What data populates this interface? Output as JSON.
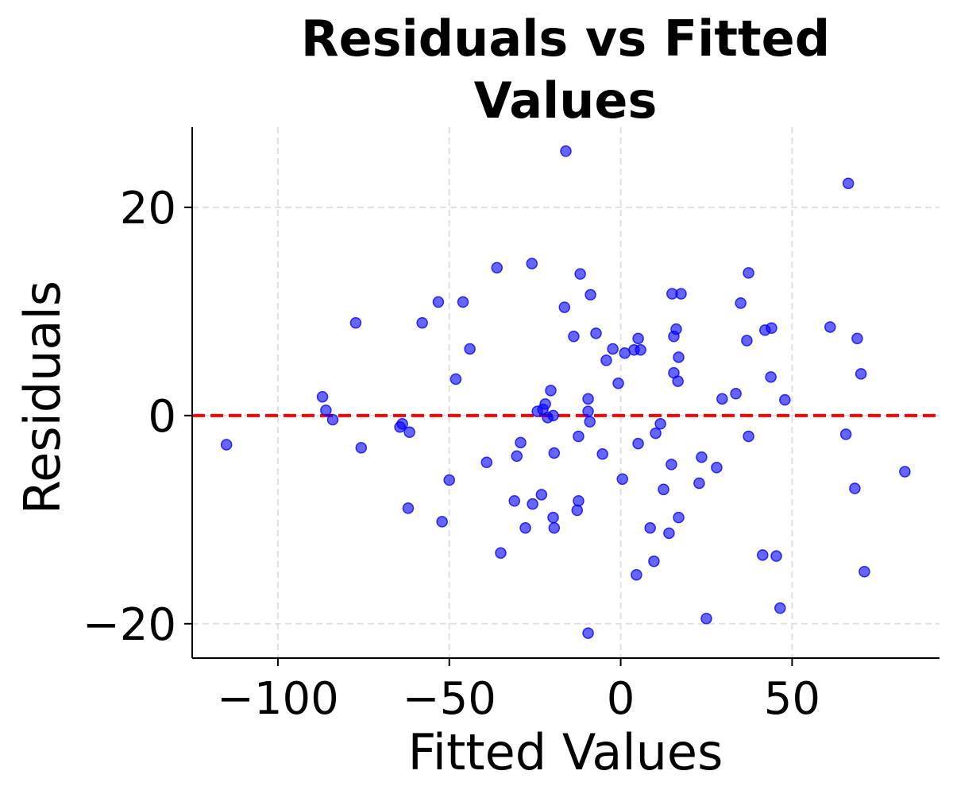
{
  "chart_data": {
    "type": "scatter",
    "title": [
      "Residuals vs Fitted",
      "Values"
    ],
    "xlabel": "Fitted Values",
    "ylabel": "Residuals",
    "xlim": [
      -125,
      93
    ],
    "ylim": [
      -23.3,
      27.7
    ],
    "xticks": [
      -100,
      -50,
      0,
      50
    ],
    "xtick_labels": [
      "−100",
      "−50",
      "0",
      "50"
    ],
    "yticks": [
      -20,
      0,
      20
    ],
    "ytick_labels": [
      "−20",
      "0",
      "20"
    ],
    "grid": true,
    "point_color": "#0000ff",
    "point_alpha": 0.6,
    "reference_line": {
      "y": 0,
      "color": "#ff0000",
      "style": "dashed"
    },
    "points": [
      [
        -115,
        -2.8
      ],
      [
        -87,
        1.8
      ],
      [
        -86,
        0.5
      ],
      [
        -84,
        -0.4
      ],
      [
        -77.3,
        8.9
      ],
      [
        -75.7,
        -3.1
      ],
      [
        -64.4,
        -1.1
      ],
      [
        -63.7,
        -0.8
      ],
      [
        -61.6,
        -1.6
      ],
      [
        -62,
        -8.9
      ],
      [
        -57.9,
        8.9
      ],
      [
        -53.2,
        10.9
      ],
      [
        -52.1,
        -10.2
      ],
      [
        -50,
        -6.2
      ],
      [
        -48.1,
        3.5
      ],
      [
        -46,
        10.9
      ],
      [
        -44,
        6.4
      ],
      [
        -39.1,
        -4.5
      ],
      [
        -36.1,
        14.2
      ],
      [
        -35,
        -13.2
      ],
      [
        -31,
        -8.2
      ],
      [
        -30.3,
        -3.9
      ],
      [
        -29.2,
        -2.6
      ],
      [
        -27.8,
        -10.8
      ],
      [
        -25.9,
        14.6
      ],
      [
        -25.7,
        -8.5
      ],
      [
        -24.3,
        0.4
      ],
      [
        -23.1,
        -7.6
      ],
      [
        -22.7,
        0.6
      ],
      [
        -22,
        1.1
      ],
      [
        -21.3,
        -0.2
      ],
      [
        -20.4,
        2.4
      ],
      [
        -19.7,
        0
      ],
      [
        -19.7,
        -9.8
      ],
      [
        -19.4,
        -10.8
      ],
      [
        -19.4,
        -3.6
      ],
      [
        -16,
        25.4
      ],
      [
        -16.4,
        10.4
      ],
      [
        -13.7,
        7.6
      ],
      [
        -12.3,
        -2
      ],
      [
        -12.3,
        -8.2
      ],
      [
        -12.7,
        -9.1
      ],
      [
        -11.8,
        13.6
      ],
      [
        -9.5,
        1.6
      ],
      [
        -9.5,
        0.4
      ],
      [
        -9,
        -0.6
      ],
      [
        -8.8,
        11.6
      ],
      [
        -9.5,
        -20.9
      ],
      [
        -7.2,
        7.9
      ],
      [
        -5.3,
        -3.7
      ],
      [
        -4.2,
        5.3
      ],
      [
        -2.3,
        6.4
      ],
      [
        -0.7,
        3.1
      ],
      [
        0.5,
        -6.1
      ],
      [
        1.2,
        6
      ],
      [
        3.9,
        6.3
      ],
      [
        5.1,
        7.4
      ],
      [
        5.8,
        6.3
      ],
      [
        5.1,
        -2.7
      ],
      [
        4.6,
        -15.3
      ],
      [
        8.6,
        -10.8
      ],
      [
        9.7,
        -14
      ],
      [
        10.2,
        -1.7
      ],
      [
        11.6,
        -0.8
      ],
      [
        12.5,
        -7.1
      ],
      [
        14.1,
        -11.3
      ],
      [
        14.8,
        -4.7
      ],
      [
        15,
        11.7
      ],
      [
        15.5,
        7.6
      ],
      [
        15.5,
        4.1
      ],
      [
        16.2,
        8.3
      ],
      [
        16.7,
        3.3
      ],
      [
        16.9,
        5.6
      ],
      [
        16.9,
        -9.8
      ],
      [
        17.6,
        11.7
      ],
      [
        23.6,
        -4
      ],
      [
        22.9,
        -6.5
      ],
      [
        25,
        -19.5
      ],
      [
        28,
        -5
      ],
      [
        29.6,
        1.6
      ],
      [
        33.6,
        2.1
      ],
      [
        35,
        10.8
      ],
      [
        36.8,
        7.2
      ],
      [
        37.3,
        -2
      ],
      [
        37.3,
        13.7
      ],
      [
        41.4,
        -13.4
      ],
      [
        42.1,
        8.2
      ],
      [
        44,
        8.4
      ],
      [
        43.8,
        3.7
      ],
      [
        45.4,
        -13.5
      ],
      [
        46.5,
        -18.5
      ],
      [
        47.9,
        1.5
      ],
      [
        61.1,
        8.5
      ],
      [
        65.7,
        -1.8
      ],
      [
        66.4,
        22.3
      ],
      [
        68.3,
        -7
      ],
      [
        69,
        7.4
      ],
      [
        70.1,
        4
      ],
      [
        71.1,
        -15
      ],
      [
        82.9,
        -5.4
      ]
    ]
  }
}
